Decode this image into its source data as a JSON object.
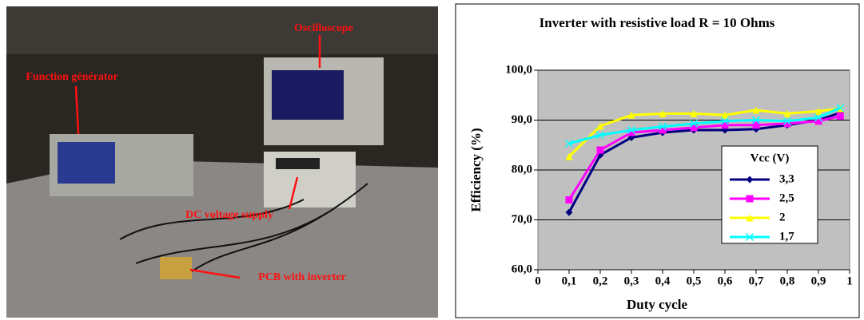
{
  "photo": {
    "annotations": [
      "Oscilloscope",
      "Function générator",
      "DC voltage supply",
      "PCB with inverter"
    ]
  },
  "chart_data": {
    "type": "line",
    "title": "Inverter with resistive load R = 10 Ohms",
    "x_label": "Duty cycle",
    "y_label": "Efficiency (%)",
    "x": [
      0.1,
      0.2,
      0.3,
      0.4,
      0.5,
      0.6,
      0.7,
      0.8,
      0.9,
      0.97
    ],
    "xlim": [
      0,
      1
    ],
    "xticks": [
      0,
      {
        "value": 0.1,
        "label": "0,1"
      },
      {
        "value": 0.2,
        "label": "0,2"
      },
      {
        "value": 0.3,
        "label": "0,3"
      },
      {
        "value": 0.4,
        "label": "0,4"
      },
      {
        "value": 0.5,
        "label": "0,5"
      },
      {
        "value": 0.6,
        "label": "0,6"
      },
      {
        "value": 0.7,
        "label": "0,7"
      },
      {
        "value": 0.8,
        "label": "0,8"
      },
      {
        "value": 0.9,
        "label": "0,9"
      },
      1
    ],
    "ylim": [
      60,
      100
    ],
    "yticks": [
      {
        "value": 60,
        "label": "60,0"
      },
      {
        "value": 70,
        "label": "70,0"
      },
      {
        "value": 80,
        "label": "80,0"
      },
      {
        "value": 90,
        "label": "90,0"
      },
      {
        "value": 100,
        "label": "100,0"
      }
    ],
    "grid": true,
    "legend_title": "Vcc (V)",
    "series": [
      {
        "name": "3,3",
        "color": "#000080",
        "marker": "diamond",
        "values": [
          71.5,
          83,
          86.5,
          87.5,
          88,
          88,
          88.2,
          89,
          90,
          91.5
        ]
      },
      {
        "name": "2,5",
        "color": "#ff00ff",
        "marker": "square",
        "values": [
          74,
          84,
          87.5,
          88,
          88.5,
          89,
          89,
          89.3,
          89.8,
          90.8
        ]
      },
      {
        "name": "2",
        "color": "#ffff00",
        "marker": "triangle",
        "values": [
          82.7,
          88.8,
          91,
          91.3,
          91.3,
          91,
          92,
          91.3,
          91.8,
          92.3
        ]
      },
      {
        "name": "1,7",
        "color": "#00ffff",
        "marker": "x",
        "values": [
          85.3,
          87,
          88,
          88.7,
          89.3,
          89.8,
          90,
          89.8,
          90.5,
          92.5
        ]
      }
    ]
  }
}
